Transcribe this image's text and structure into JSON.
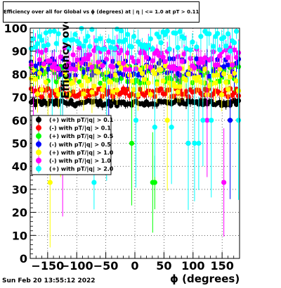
{
  "title": "Efficiency over all for Global vs ϕ (degrees) at | η | <= 1.0 at pT > 0.11",
  "footer_timestamp": "Sun Feb 20 13:55:12 2022",
  "chart_data": {
    "type": "scatter",
    "title": "Efficiency over all for Global vs ϕ (degrees) at | η | <= 1.0 at pT > 0.11",
    "xlabel": "ϕ (degrees)",
    "ylabel": "Efficiency over all (%)",
    "xlim": [
      -180,
      180
    ],
    "ylim": [
      0,
      100
    ],
    "x_ticks": [
      -150,
      -100,
      -50,
      0,
      50,
      100,
      150
    ],
    "y_ticks": [
      0,
      10,
      20,
      30,
      40,
      50,
      60,
      70,
      80,
      90,
      100
    ],
    "grid": true,
    "legend_position": "middle-left",
    "series": [
      {
        "name": "(+) with pT/|q| > 0.1",
        "color": "#000000",
        "level": 67.5,
        "spread": 1.2,
        "outlier_rate": 0.0
      },
      {
        "name": "(-) with pT/|q| > 0.1",
        "color": "#ff0000",
        "level": 72.0,
        "spread": 1.8,
        "outlier_rate": 0.0
      },
      {
        "name": "(+) with pT/|q| > 0.5",
        "color": "#00ff00",
        "level": 80.0,
        "spread": 4.0,
        "outlier_rate": 0.02
      },
      {
        "name": "(-) with pT/|q| > 0.5",
        "color": "#0000ff",
        "level": 83.0,
        "spread": 4.0,
        "outlier_rate": 0.02
      },
      {
        "name": "(+) with pT/|q| > 1.0",
        "color": "#ffff00",
        "level": 78.0,
        "spread": 7.0,
        "outlier_rate": 0.05
      },
      {
        "name": "(-) with pT/|q| > 1.0",
        "color": "#ff00ff",
        "level": 87.0,
        "spread": 5.0,
        "outlier_rate": 0.04
      },
      {
        "name": "(+) with pT/|q| > 2.0",
        "color": "#00ffff",
        "level": 95.0,
        "spread": 5.0,
        "outlier_rate": 0.1
      }
    ]
  }
}
